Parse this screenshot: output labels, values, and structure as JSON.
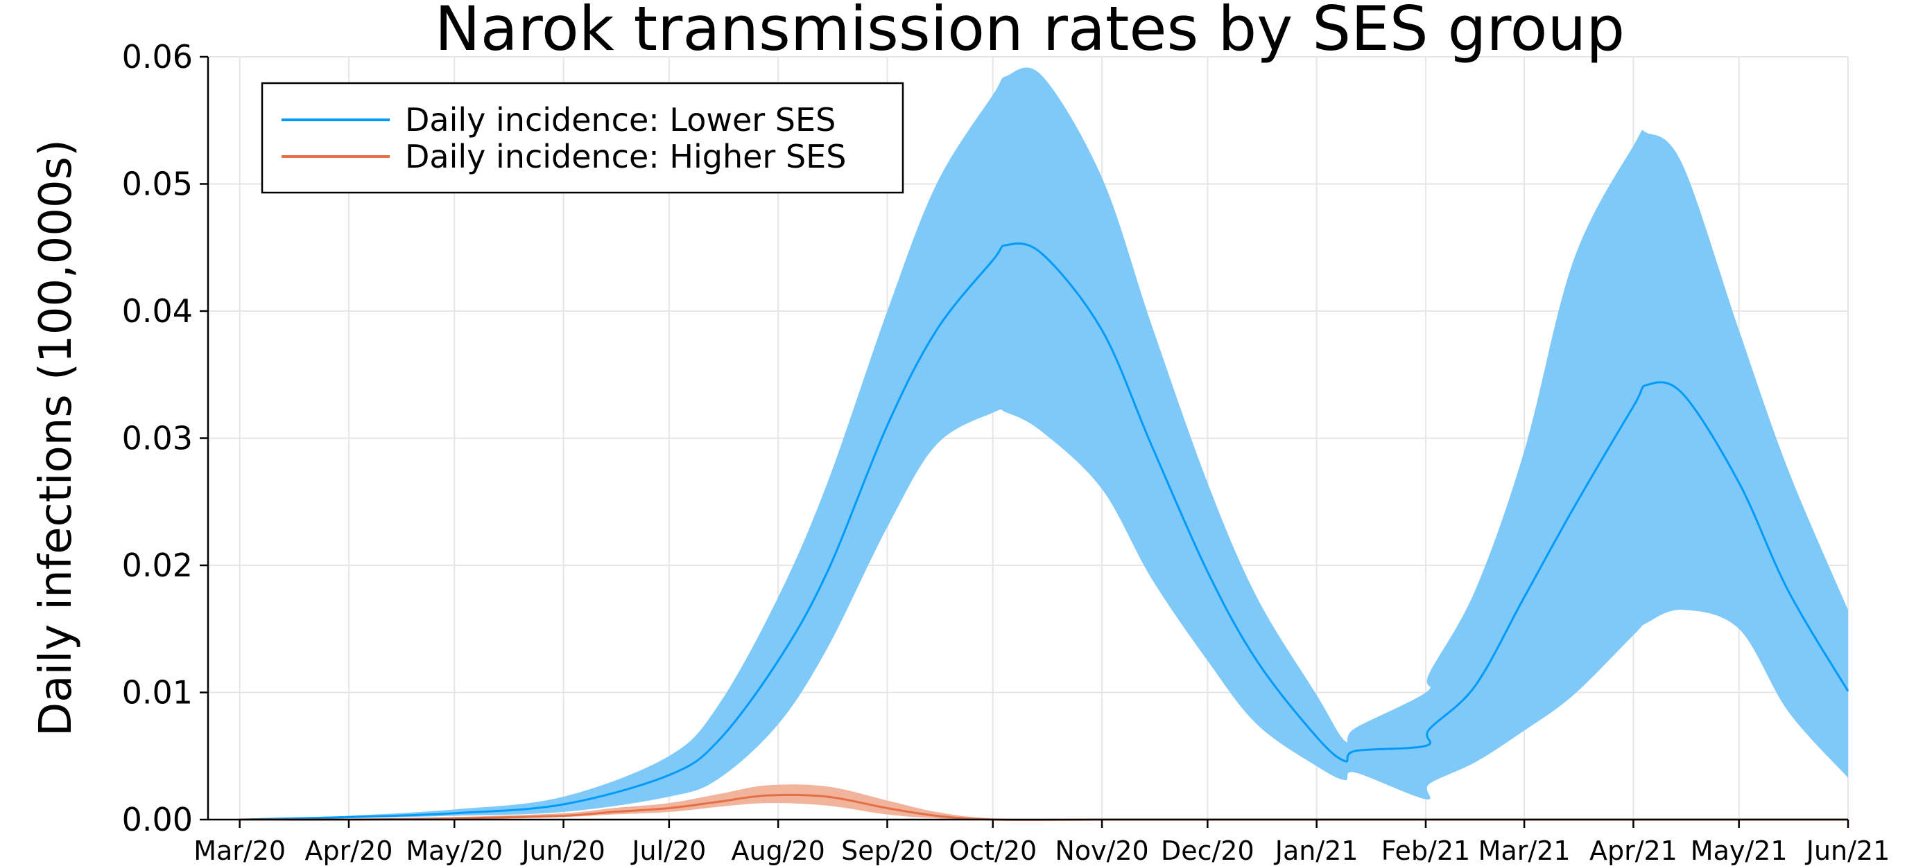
{
  "chart_data": {
    "type": "line",
    "title": "Narok transmission rates by SES group",
    "ylabel": "Daily infections (100,000s)",
    "xlabel": "",
    "ylim": [
      0,
      0.06
    ],
    "yticks": [
      0,
      0.01,
      0.02,
      0.03,
      0.04,
      0.05,
      0.06
    ],
    "ytick_labels": [
      "0.00",
      "0.01",
      "0.02",
      "0.03",
      "0.04",
      "0.05",
      "0.06"
    ],
    "xlim": [
      "2020-02-21",
      "2021-06-01"
    ],
    "xticks": [
      "2020-03-01",
      "2020-04-01",
      "2020-05-01",
      "2020-06-01",
      "2020-07-01",
      "2020-08-01",
      "2020-09-01",
      "2020-10-01",
      "2020-11-01",
      "2020-12-01",
      "2021-01-01",
      "2021-02-01",
      "2021-03-01",
      "2021-04-01",
      "2021-05-01",
      "2021-06-01"
    ],
    "xtick_labels": [
      "Mar/20",
      "Apr/20",
      "May/20",
      "Jun/20",
      "Jul/20",
      "Aug/20",
      "Sep/20",
      "Oct/20",
      "Nov/20",
      "Dec/20",
      "Jan/21",
      "Feb/21",
      "Mar/21",
      "Apr/21",
      "May/21",
      "Jun/21"
    ],
    "grid": true,
    "legend_position": "top-left",
    "series": [
      {
        "name": "Daily incidence: Lower SES",
        "color": "#009af9",
        "band_color": "#7fc9f9",
        "x": [
          "2020-03-01",
          "2020-04-01",
          "2020-05-01",
          "2020-06-01",
          "2020-07-01",
          "2020-07-15",
          "2020-08-01",
          "2020-08-15",
          "2020-09-01",
          "2020-09-15",
          "2020-10-01",
          "2020-10-05",
          "2020-10-15",
          "2020-11-01",
          "2020-11-15",
          "2020-12-01",
          "2020-12-15",
          "2021-01-01",
          "2021-01-09",
          "2021-01-12",
          "2021-02-01",
          "2021-02-02",
          "2021-02-15",
          "2021-03-01",
          "2021-03-15",
          "2021-04-01",
          "2021-04-05",
          "2021-04-15",
          "2021-05-01",
          "2021-05-15",
          "2021-06-01"
        ],
        "values": [
          0.0,
          0.0002,
          0.0005,
          0.0012,
          0.0035,
          0.0062,
          0.0125,
          0.0195,
          0.031,
          0.0385,
          0.044,
          0.0452,
          0.0445,
          0.0385,
          0.0295,
          0.0195,
          0.0125,
          0.0065,
          0.0046,
          0.0054,
          0.0058,
          0.0071,
          0.0105,
          0.0175,
          0.0245,
          0.0325,
          0.0342,
          0.0335,
          0.0265,
          0.018,
          0.0101
        ],
        "lower": [
          0.0,
          0.0001,
          0.0003,
          0.0006,
          0.0018,
          0.0032,
          0.0075,
          0.0135,
          0.023,
          0.0295,
          0.032,
          0.032,
          0.0305,
          0.026,
          0.019,
          0.0125,
          0.0075,
          0.0042,
          0.0031,
          0.0037,
          0.0016,
          0.0028,
          0.0045,
          0.007,
          0.0098,
          0.0145,
          0.0155,
          0.0165,
          0.015,
          0.0085,
          0.0033
        ],
        "upper": [
          0.0,
          0.0003,
          0.0008,
          0.0018,
          0.005,
          0.009,
          0.0175,
          0.0265,
          0.04,
          0.05,
          0.057,
          0.0585,
          0.0585,
          0.0505,
          0.039,
          0.0265,
          0.0175,
          0.0098,
          0.0062,
          0.0072,
          0.01,
          0.0115,
          0.018,
          0.029,
          0.044,
          0.053,
          0.054,
          0.0515,
          0.0385,
          0.0275,
          0.0165
        ]
      },
      {
        "name": "Daily incidence: Higher SES",
        "color": "#e26f46",
        "band_color": "#f2b39c",
        "x": [
          "2020-03-01",
          "2020-04-01",
          "2020-05-01",
          "2020-06-01",
          "2020-06-15",
          "2020-07-01",
          "2020-07-15",
          "2020-07-29",
          "2020-08-15",
          "2020-09-01",
          "2020-09-15",
          "2020-10-01",
          "2020-11-01",
          "2020-12-01",
          "2021-01-01",
          "2021-02-01",
          "2021-03-01",
          "2021-04-01",
          "2021-05-01",
          "2021-06-01"
        ],
        "values": [
          0.0,
          0.0,
          0.0001,
          0.0003,
          0.0006,
          0.0009,
          0.0014,
          0.0019,
          0.0018,
          0.0009,
          0.0003,
          0.0,
          0.0,
          0.0,
          0.0,
          0.0,
          0.0,
          0.0,
          0.0,
          0.0
        ],
        "lower": [
          0.0,
          0.0,
          0.0,
          0.0002,
          0.0004,
          0.0006,
          0.001,
          0.0013,
          0.0011,
          0.0004,
          0.0001,
          0.0,
          0.0,
          0.0,
          0.0,
          0.0,
          0.0,
          0.0,
          0.0,
          0.0
        ],
        "upper": [
          0.0,
          0.0,
          0.0002,
          0.0005,
          0.0009,
          0.0013,
          0.002,
          0.0027,
          0.0026,
          0.0015,
          0.0006,
          0.0001,
          0.0,
          0.0,
          0.0,
          0.0,
          0.0,
          0.0,
          0.0,
          0.0
        ]
      }
    ]
  }
}
